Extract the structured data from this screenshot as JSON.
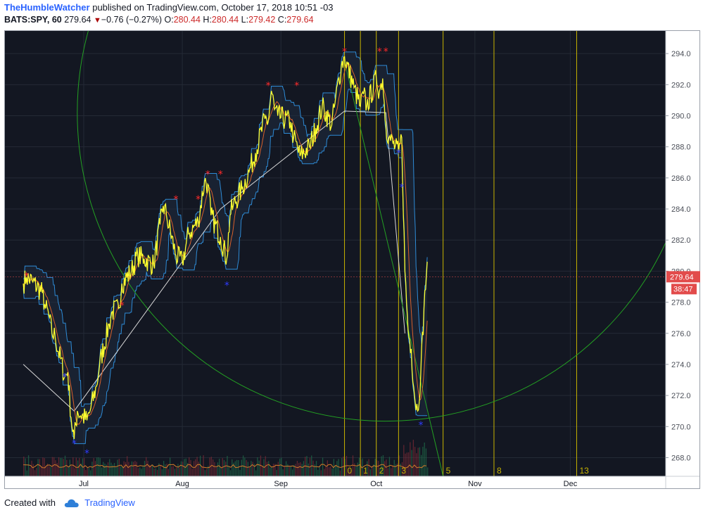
{
  "header": {
    "username": "TheHumbleWatcher",
    "published_text": "published on TradingView.com, October 17, 2018 10:51 -03",
    "symbol": "BATS:SPY, 60",
    "price": "279.64",
    "change": "−0.76 (−0.27%)",
    "o_label": "O:",
    "o_value": "280.44",
    "h_label": "H:",
    "h_value": "280.44",
    "l_label": "L:",
    "l_value": "279.42",
    "c_label": "C:",
    "c_value": "279.64"
  },
  "footer": {
    "created_with": "Created with",
    "brand": "TradingView"
  },
  "colors": {
    "background": "#131722",
    "price_line": "#ffff2e",
    "channel": "#2e8bd6",
    "gann_circle": "#23a023",
    "fib_time": "#c8b400",
    "sell_marker": "#ff2a2a",
    "buy_marker": "#2f3bff",
    "price_badge": "#e24b4b"
  },
  "chart_data": {
    "type": "line",
    "symbol": "BATS:SPY",
    "interval": "60",
    "x_ticks": [
      "Jul",
      "Aug",
      "Sep",
      "Oct",
      "Nov",
      "Dec"
    ],
    "y_ticks": [
      268.0,
      270.0,
      272.0,
      274.0,
      276.0,
      278.0,
      280.0,
      282.0,
      284.0,
      286.0,
      288.0,
      290.0,
      292.0,
      294.0
    ],
    "ylim": [
      266.8,
      295.5
    ],
    "current_price": 279.64,
    "countdown": "38:47",
    "price_path": [
      [
        "2018-06-12",
        279.2
      ],
      [
        "2018-06-13",
        279.6
      ],
      [
        "2018-06-15",
        279.3
      ],
      [
        "2018-06-18",
        278.6
      ],
      [
        "2018-06-19",
        277.6
      ],
      [
        "2018-06-20",
        277.2
      ],
      [
        "2018-06-21",
        276.0
      ],
      [
        "2018-06-22",
        275.8
      ],
      [
        "2018-06-25",
        273.2
      ],
      [
        "2018-06-26",
        273.5
      ],
      [
        "2018-06-27",
        270.6
      ],
      [
        "2018-06-28",
        269.2
      ],
      [
        "2018-06-29",
        271.0
      ],
      [
        "2018-07-02",
        270.4
      ],
      [
        "2018-07-03",
        271.0
      ],
      [
        "2018-07-05",
        272.6
      ],
      [
        "2018-07-06",
        274.0
      ],
      [
        "2018-07-09",
        276.6
      ],
      [
        "2018-07-10",
        277.4
      ],
      [
        "2018-07-12",
        277.6
      ],
      [
        "2018-07-13",
        279.2
      ],
      [
        "2018-07-16",
        280.0
      ],
      [
        "2018-07-18",
        281.0
      ],
      [
        "2018-07-20",
        280.8
      ],
      [
        "2018-07-23",
        280.4
      ],
      [
        "2018-07-25",
        283.0
      ],
      [
        "2018-07-26",
        284.2
      ],
      [
        "2018-07-27",
        283.6
      ],
      [
        "2018-07-30",
        281.0
      ],
      [
        "2018-08-01",
        280.6
      ],
      [
        "2018-08-03",
        282.4
      ],
      [
        "2018-08-06",
        283.2
      ],
      [
        "2018-08-08",
        285.8
      ],
      [
        "2018-08-09",
        285.6
      ],
      [
        "2018-08-10",
        283.6
      ],
      [
        "2018-08-13",
        282.2
      ],
      [
        "2018-08-15",
        280.8
      ],
      [
        "2018-08-16",
        283.6
      ],
      [
        "2018-08-17",
        284.2
      ],
      [
        "2018-08-20",
        285.4
      ],
      [
        "2018-08-22",
        286.4
      ],
      [
        "2018-08-24",
        287.6
      ],
      [
        "2018-08-27",
        289.8
      ],
      [
        "2018-08-28",
        289.6
      ],
      [
        "2018-08-29",
        291.6
      ],
      [
        "2018-08-30",
        290.4
      ],
      [
        "2018-08-31",
        290.0
      ],
      [
        "2018-09-04",
        289.6
      ],
      [
        "2018-09-05",
        288.6
      ],
      [
        "2018-09-07",
        287.4
      ],
      [
        "2018-09-10",
        288.0
      ],
      [
        "2018-09-12",
        289.2
      ],
      [
        "2018-09-14",
        290.6
      ],
      [
        "2018-09-17",
        289.4
      ],
      [
        "2018-09-18",
        290.8
      ],
      [
        "2018-09-20",
        293.2
      ],
      [
        "2018-09-21",
        293.8
      ],
      [
        "2018-09-24",
        291.8
      ],
      [
        "2018-09-26",
        290.6
      ],
      [
        "2018-09-27",
        291.4
      ],
      [
        "2018-09-28",
        290.6
      ],
      [
        "2018-10-01",
        292.4
      ],
      [
        "2018-10-02",
        291.6
      ],
      [
        "2018-10-03",
        292.4
      ],
      [
        "2018-10-04",
        289.4
      ],
      [
        "2018-10-05",
        288.6
      ],
      [
        "2018-10-08",
        287.6
      ],
      [
        "2018-10-09",
        288.6
      ],
      [
        "2018-10-10",
        280.0
      ],
      [
        "2018-10-11",
        276.2
      ],
      [
        "2018-10-12",
        275.0
      ],
      [
        "2018-10-13",
        272.0
      ],
      [
        "2018-10-14",
        271.0
      ],
      [
        "2018-10-15",
        273.5
      ],
      [
        "2018-10-16",
        277.6
      ],
      [
        "2018-10-17",
        280.6
      ]
    ],
    "sell_markers": [
      [
        "2018-06-13",
        279.65
      ],
      [
        "2018-07-13",
        277.75
      ],
      [
        "2018-07-30",
        284.6
      ],
      [
        "2018-08-06",
        284.6
      ],
      [
        "2018-08-09",
        286.2
      ],
      [
        "2018-08-13",
        286.2
      ],
      [
        "2018-08-28",
        291.9
      ],
      [
        "2018-09-06",
        291.9
      ],
      [
        "2018-09-21",
        294.1
      ],
      [
        "2018-10-02",
        294.1
      ],
      [
        "2018-10-04",
        294.1
      ]
    ],
    "buy_markers": [
      [
        "2018-06-25",
        273.2
      ],
      [
        "2018-06-28",
        268.9
      ],
      [
        "2018-07-02",
        268.3
      ],
      [
        "2018-08-15",
        279.1
      ],
      [
        "2018-10-08",
        287.6
      ],
      [
        "2018-10-09",
        285.4
      ],
      [
        "2018-10-15",
        270.1
      ]
    ],
    "fib_time_zones": [
      {
        "label": "0",
        "date": "2018-09-21"
      },
      {
        "label": "1",
        "date": "2018-09-26"
      },
      {
        "label": "2",
        "date": "2018-10-01"
      },
      {
        "label": "3",
        "date": "2018-10-08"
      },
      {
        "label": "5",
        "date": "2018-10-22"
      },
      {
        "label": "8",
        "date": "2018-11-07"
      },
      {
        "label": "13",
        "date": "2018-12-03"
      }
    ],
    "trendlines": [
      [
        [
          "2018-06-12",
          274.0
        ],
        [
          "2018-06-28",
          271.0
        ],
        [
          "2018-08-13",
          284.0
        ],
        [
          "2018-09-21",
          290.3
        ],
        [
          "2018-10-04",
          290.2
        ],
        [
          "2018-10-10",
          276.0
        ]
      ],
      [
        [
          "2018-09-21",
          293.5
        ],
        [
          "2018-10-22",
          266.8
        ]
      ]
    ],
    "gann_circles": [
      {
        "center": [
          "2018-10-04",
          290.2
        ],
        "through": [
          "2018-10-04",
          270.35
        ]
      }
    ]
  }
}
